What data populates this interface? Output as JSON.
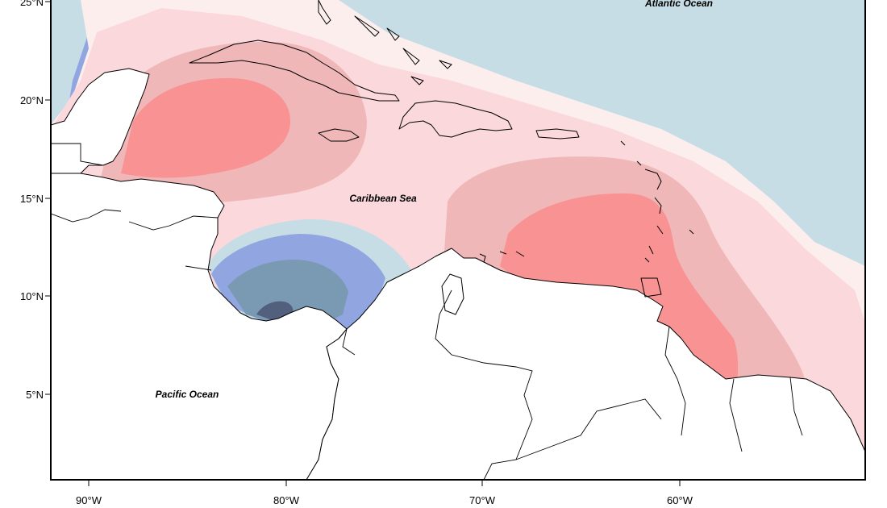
{
  "map": {
    "labels": {
      "atlantic": "Atlantic Ocean",
      "caribbean": "Caribbean Sea",
      "pacific": "Pacific Ocean"
    },
    "lat_ticks": [
      "25°N",
      "20°N",
      "15°N",
      "10°N",
      "5°N"
    ],
    "lon_ticks": [
      "90°W",
      "80°W",
      "70°W",
      "60°W"
    ],
    "colors": {
      "deep_blue": "#91a6e0",
      "light_blue": "#c7dde6",
      "pale_pink": "#fdeeee",
      "light_pink": "#fbd8dc",
      "mid_pink": "#f0b7b8",
      "strong_pink": "#f99293",
      "slate": "#7a9ab3",
      "dark_slate": "#52607e",
      "land": "#ffffff"
    }
  }
}
